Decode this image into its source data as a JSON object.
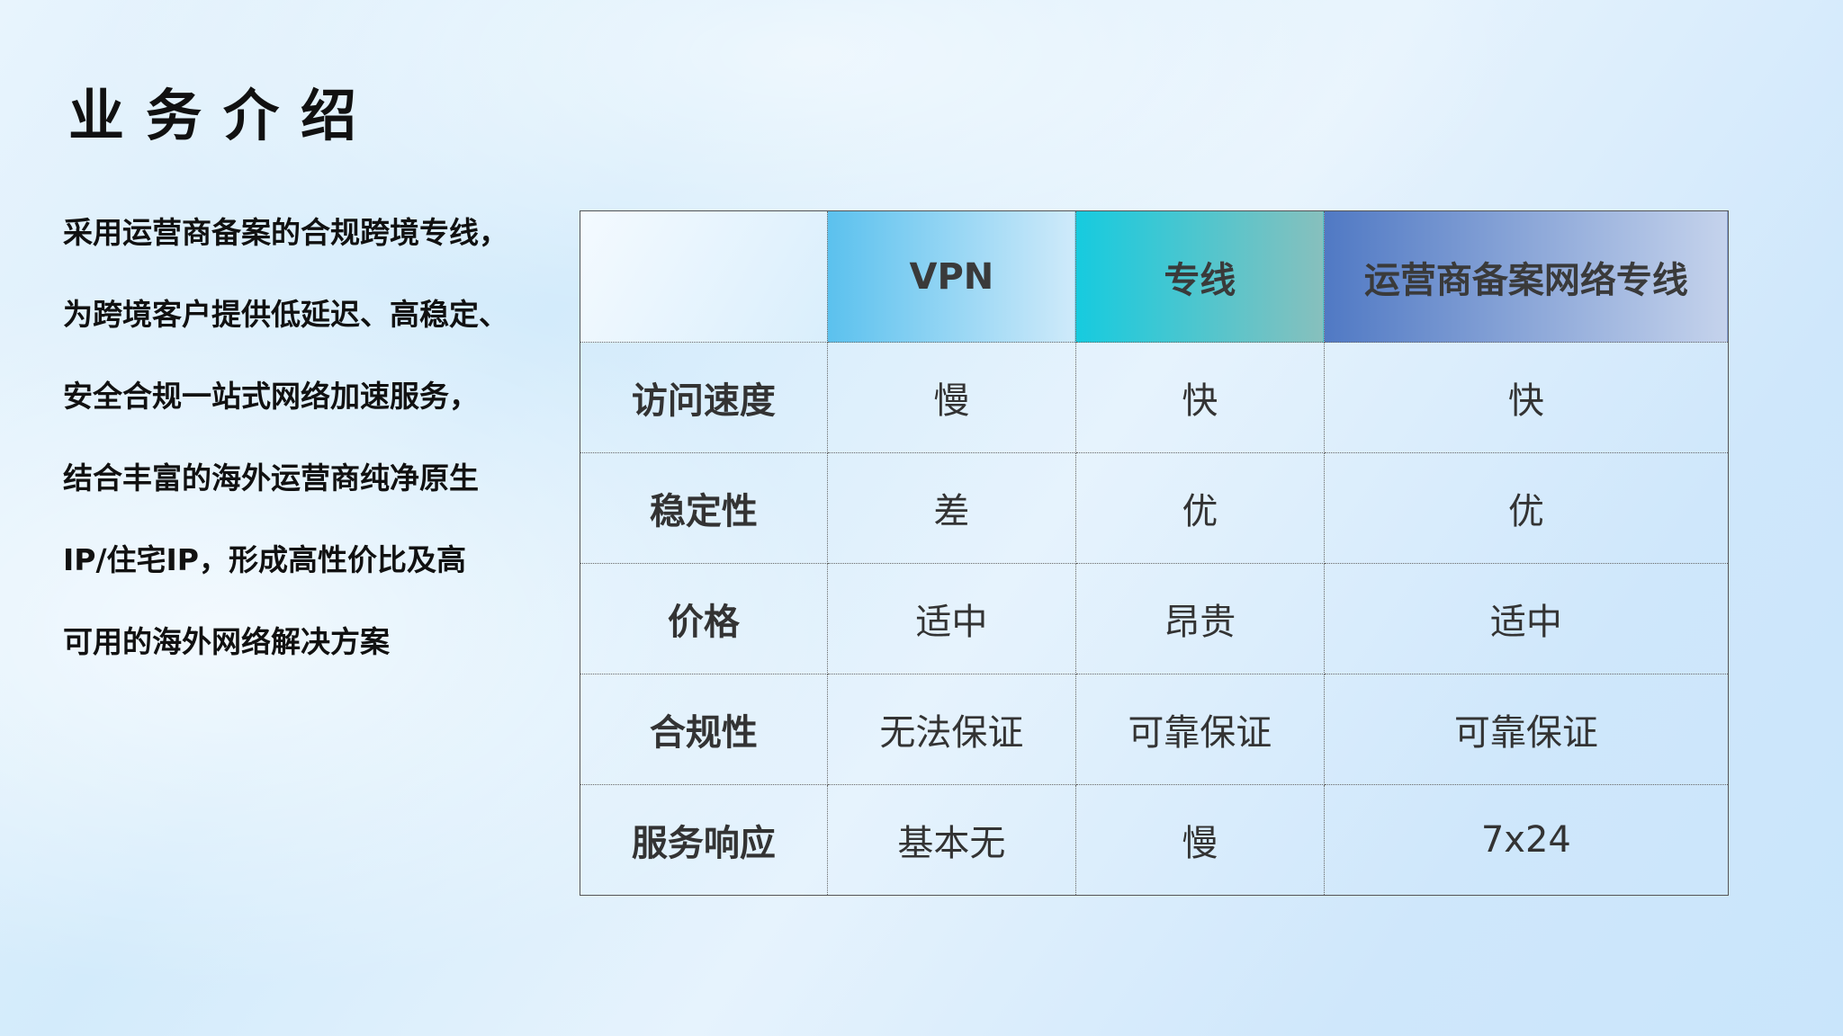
{
  "title": "业务介绍",
  "intro_lines": [
    "采用运营商备案的合规跨境专线，",
    "为跨境客户提供低延迟、高稳定、",
    "安全合规一站式网络加速服务，",
    "结合丰富的海外运营商纯净原生",
    "IP/住宅IP，形成高性价比及高",
    "可用的海外网络解决方案"
  ],
  "table": {
    "headers": [
      "",
      "VPN",
      "专线",
      "运营商备案网络专线"
    ],
    "rows": [
      [
        "访问速度",
        "慢",
        "快",
        "快"
      ],
      [
        "稳定性",
        "差",
        "优",
        "优"
      ],
      [
        "价格",
        "适中",
        "昂贵",
        "适中"
      ],
      [
        "合规性",
        "无法保证",
        "可靠保证",
        "可靠保证"
      ],
      [
        "服务响应",
        "基本无",
        "慢",
        "7x24"
      ]
    ]
  },
  "colors": {
    "vpn_header": "#5bc1ee",
    "line_header": "#16cbdf",
    "carrier_header": "#5079c4"
  }
}
